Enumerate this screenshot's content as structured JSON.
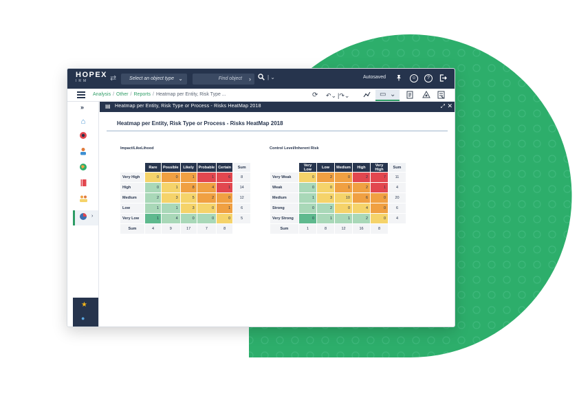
{
  "app": {
    "logo_line1": "HOPEX",
    "logo_line2": "IRM"
  },
  "topbar": {
    "object_type_placeholder": "Select an object type",
    "find_placeholder": "Find object",
    "autosaved": "Autosaved",
    "icons": [
      "swap-icon",
      "search-icon",
      "pin-icon",
      "user-icon",
      "help-icon",
      "logout-icon"
    ]
  },
  "breadcrumb": {
    "items": [
      "Analysis",
      "Other",
      "Reports"
    ],
    "current": "Heatmap per Entity, Risk Type ..."
  },
  "toolbar": {
    "icons": [
      "refresh-icon",
      "undo-icon",
      "redo-icon",
      "graph-icon",
      "view-icon",
      "edit-report-icon",
      "network-icon",
      "report-icon"
    ]
  },
  "sidebar": {
    "icons": [
      "home-icon",
      "risk-icon",
      "person-icon",
      "globe-icon",
      "book-icon",
      "people-icon",
      "analysis-icon",
      "star-icon",
      "world-icon"
    ]
  },
  "panel": {
    "title": "Heatmap per Entity, Risk Type or Process - Risks HeatMap 2018"
  },
  "report": {
    "title": "Heatmap per Entity, Risk Type or Process - Risks HeatMap 2018"
  },
  "colors": {
    "navy": "#26344d",
    "accent": "#2d9c65",
    "dark_green": "#5fb98e",
    "light_green": "#a9d8b8",
    "yellow": "#f5d36a",
    "orange": "#f0a042",
    "red": "#e2474f"
  },
  "heatmap1": {
    "label": "Impact/LikeLihood",
    "columns": [
      "Rare",
      "Possible",
      "Likely",
      "Probable",
      "Certain"
    ],
    "sum_label": "Sum",
    "rows": [
      {
        "label": "Very High",
        "cells": [
          0,
          0,
          1,
          1,
          6
        ],
        "colors": [
          "yellow",
          "orange",
          "orange",
          "red",
          "red"
        ],
        "sum": 8
      },
      {
        "label": "High",
        "cells": [
          0,
          1,
          8,
          4,
          1
        ],
        "colors": [
          "light_green",
          "yellow",
          "orange",
          "orange",
          "red"
        ],
        "sum": 14
      },
      {
        "label": "Medium",
        "cells": [
          2,
          3,
          5,
          2,
          0
        ],
        "colors": [
          "light_green",
          "yellow",
          "yellow",
          "orange",
          "orange"
        ],
        "sum": 12
      },
      {
        "label": "Low",
        "cells": [
          1,
          1,
          3,
          0,
          1
        ],
        "colors": [
          "light_green",
          "light_green",
          "yellow",
          "yellow",
          "orange"
        ],
        "sum": 6
      },
      {
        "label": "Very Low",
        "cells": [
          1,
          4,
          0,
          0,
          0
        ],
        "colors": [
          "dark_green",
          "light_green",
          "light_green",
          "light_green",
          "yellow"
        ],
        "sum": 5
      }
    ],
    "col_sums": [
      4,
      9,
      17,
      7,
      8
    ]
  },
  "heatmap2": {
    "label": "Control Level/Inherent Risk",
    "columns": [
      "Very Low",
      "Low",
      "Medium",
      "High",
      "Very High"
    ],
    "sum_label": "Sum",
    "rows": [
      {
        "label": "Very Weak",
        "cells": [
          0,
          2,
          0,
          2,
          7
        ],
        "colors": [
          "yellow",
          "orange",
          "orange",
          "red",
          "red"
        ],
        "sum": 11
      },
      {
        "label": "Weak",
        "cells": [
          0,
          0,
          1,
          2,
          1
        ],
        "colors": [
          "light_green",
          "yellow",
          "orange",
          "orange",
          "red"
        ],
        "sum": 4
      },
      {
        "label": "Medium",
        "cells": [
          1,
          3,
          10,
          6,
          0
        ],
        "colors": [
          "light_green",
          "yellow",
          "yellow",
          "orange",
          "orange"
        ],
        "sum": 20
      },
      {
        "label": "Strong",
        "cells": [
          0,
          2,
          0,
          4,
          0
        ],
        "colors": [
          "light_green",
          "light_green",
          "yellow",
          "yellow",
          "orange"
        ],
        "sum": 6
      },
      {
        "label": "Very Strong",
        "cells": [
          0,
          1,
          1,
          2,
          0
        ],
        "colors": [
          "dark_green",
          "light_green",
          "light_green",
          "light_green",
          "yellow"
        ],
        "sum": 4
      }
    ],
    "col_sums": [
      1,
      8,
      12,
      16,
      8
    ]
  }
}
